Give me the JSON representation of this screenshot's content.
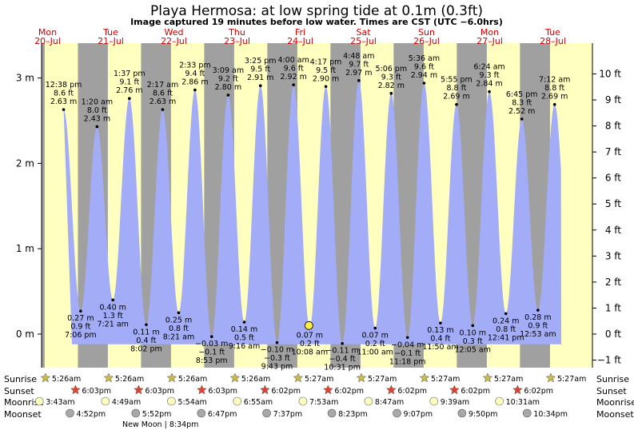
{
  "header": {
    "title": "Playa Hermosa: at low  spring tide at 0.1m (0.3ft)",
    "subtitle": "Image captured 19 minutes before low water. Times are CST (UTC −6.0hrs)"
  },
  "colors": {
    "water": "#a3acf6",
    "day": "#ffffc0",
    "night": "#a0a0a0",
    "sunrise_star": "#ccbb44",
    "sunset_star": "#dd4433",
    "moonrise_dot": "#ffffc0",
    "moonset_dot": "#a8a8a8",
    "day_label": "#cc0000",
    "current_marker": "#ffee44"
  },
  "chart_data": {
    "type": "area",
    "title": "Playa Hermosa: at low  spring tide at 0.1m (0.3ft)",
    "y_left_unit": "m",
    "y_right_unit": "ft",
    "y_left_ticks": [
      "0 m",
      "1 m",
      "2 m",
      "3 m"
    ],
    "y_right_ticks": [
      "−1 ft",
      "0 ft",
      "1 ft",
      "2 ft",
      "3 ft",
      "4 ft",
      "5 ft",
      "6 ft",
      "7 ft",
      "8 ft",
      "9 ft",
      "10 ft"
    ],
    "ylim_m": [
      -0.35,
      3.2
    ],
    "days": [
      {
        "name": "Mon",
        "date": "20–Jul"
      },
      {
        "name": "Tue",
        "date": "21–Jul"
      },
      {
        "name": "Wed",
        "date": "22–Jul"
      },
      {
        "name": "Thu",
        "date": "23–Jul"
      },
      {
        "name": "Fri",
        "date": "24–Jul"
      },
      {
        "name": "Sat",
        "date": "25–Jul"
      },
      {
        "name": "Sun",
        "date": "26–Jul"
      },
      {
        "name": "Mon",
        "date": "27–Jul"
      },
      {
        "name": "Tue",
        "date": "28–Jul"
      }
    ],
    "tides": [
      {
        "type": "high",
        "time": "12:38 pm",
        "ft": "8.6 ft",
        "m": "2.63 m",
        "value": 2.63,
        "day": 0,
        "hour": 12.63
      },
      {
        "type": "low",
        "time": "7:06 pm",
        "ft": "0.9 ft",
        "m": "0.27 m",
        "value": 0.27,
        "day": 0,
        "hour": 19.1
      },
      {
        "type": "high",
        "time": "1:20 am",
        "ft": "8.0 ft",
        "m": "2.43 m",
        "value": 2.43,
        "day": 1,
        "hour": 1.33
      },
      {
        "type": "low",
        "time": "7:21 am",
        "ft": "1.3 ft",
        "m": "0.40 m",
        "value": 0.4,
        "day": 1,
        "hour": 7.35
      },
      {
        "type": "high",
        "time": "1:37 pm",
        "ft": "9.1 ft",
        "m": "2.76 m",
        "value": 2.76,
        "day": 1,
        "hour": 13.62
      },
      {
        "type": "low",
        "time": "8:02 pm",
        "ft": "0.4 ft",
        "m": "0.11 m",
        "value": 0.11,
        "day": 1,
        "hour": 20.03
      },
      {
        "type": "high",
        "time": "2:17 am",
        "ft": "8.6 ft",
        "m": "2.63 m",
        "value": 2.63,
        "day": 2,
        "hour": 2.28
      },
      {
        "type": "low",
        "time": "8:21 am",
        "ft": "0.8 ft",
        "m": "0.25 m",
        "value": 0.25,
        "day": 2,
        "hour": 8.35
      },
      {
        "type": "high",
        "time": "2:33 pm",
        "ft": "9.4 ft",
        "m": "2.86 m",
        "value": 2.86,
        "day": 2,
        "hour": 14.55
      },
      {
        "type": "low",
        "time": "8:53 pm",
        "ft": "−0.1 ft",
        "m": "−0.03 m",
        "value": -0.03,
        "day": 2,
        "hour": 20.88
      },
      {
        "type": "high",
        "time": "3:09 am",
        "ft": "9.2 ft",
        "m": "2.80 m",
        "value": 2.8,
        "day": 3,
        "hour": 3.15
      },
      {
        "type": "low",
        "time": "9:16 am",
        "ft": "0.5 ft",
        "m": "0.14 m",
        "value": 0.14,
        "day": 3,
        "hour": 9.27
      },
      {
        "type": "high",
        "time": "3:25 pm",
        "ft": "9.5 ft",
        "m": "2.91 m",
        "value": 2.91,
        "day": 3,
        "hour": 15.42
      },
      {
        "type": "low",
        "time": "9:43 pm",
        "ft": "−0.3 ft",
        "m": "−0.10 m",
        "value": -0.1,
        "day": 3,
        "hour": 21.72
      },
      {
        "type": "high",
        "time": "4:00 am",
        "ft": "9.6 ft",
        "m": "2.92 m",
        "value": 2.92,
        "day": 4,
        "hour": 4.0
      },
      {
        "type": "low",
        "time": "10:08 am",
        "ft": "0.2 ft",
        "m": "0.07 m",
        "value": 0.07,
        "day": 4,
        "hour": 10.13
      },
      {
        "type": "high",
        "time": "4:17 pm",
        "ft": "9.5 ft",
        "m": "2.90 m",
        "value": 2.9,
        "day": 4,
        "hour": 16.28
      },
      {
        "type": "low",
        "time": "10:31 pm",
        "ft": "−0.4 ft",
        "m": "−0.11 m",
        "value": -0.11,
        "day": 4,
        "hour": 22.52
      },
      {
        "type": "high",
        "time": "4:48 am",
        "ft": "9.7 ft",
        "m": "2.97 m",
        "value": 2.97,
        "day": 5,
        "hour": 4.8
      },
      {
        "type": "low",
        "time": "11:00 am",
        "ft": "0.2 ft",
        "m": "0.07 m",
        "value": 0.07,
        "day": 5,
        "hour": 11.0
      },
      {
        "type": "high",
        "time": "5:06 pm",
        "ft": "9.3 ft",
        "m": "2.82 m",
        "value": 2.82,
        "day": 5,
        "hour": 17.1
      },
      {
        "type": "low",
        "time": "11:18 pm",
        "ft": "−0.1 ft",
        "m": "−0.04 m",
        "value": -0.04,
        "day": 5,
        "hour": 23.3
      },
      {
        "type": "high",
        "time": "5:36 am",
        "ft": "9.6 ft",
        "m": "2.94 m",
        "value": 2.94,
        "day": 6,
        "hour": 5.6
      },
      {
        "type": "low",
        "time": "11:50 am",
        "ft": "0.4 ft",
        "m": "0.13 m",
        "value": 0.13,
        "day": 6,
        "hour": 11.83
      },
      {
        "type": "high",
        "time": "5:55 pm",
        "ft": "8.8 ft",
        "m": "2.69 m",
        "value": 2.69,
        "day": 6,
        "hour": 17.92
      },
      {
        "type": "low",
        "time": "12:05 am",
        "ft": "0.3 ft",
        "m": "0.10 m",
        "value": 0.1,
        "day": 7,
        "hour": 0.08
      },
      {
        "type": "high",
        "time": "6:24 am",
        "ft": "9.3 ft",
        "m": "2.84 m",
        "value": 2.84,
        "day": 7,
        "hour": 6.4
      },
      {
        "type": "low",
        "time": "12:41 pm",
        "ft": "0.8 ft",
        "m": "0.24 m",
        "value": 0.24,
        "day": 7,
        "hour": 12.68
      },
      {
        "type": "high",
        "time": "6:45 pm",
        "ft": "8.3 ft",
        "m": "2.52 m",
        "value": 2.52,
        "day": 7,
        "hour": 18.75
      },
      {
        "type": "low",
        "time": "12:53 am",
        "ft": "0.9 ft",
        "m": "0.28 m",
        "value": 0.28,
        "day": 8,
        "hour": 0.88
      },
      {
        "type": "high",
        "time": "7:12 am",
        "ft": "8.8 ft",
        "m": "2.69 m",
        "value": 2.69,
        "day": 8,
        "hour": 7.2
      }
    ],
    "current": {
      "day": 4,
      "hour": 9.82,
      "value": 0.1
    }
  },
  "bottom": {
    "labels": {
      "sunrise": "Sunrise",
      "sunset": "Sunset",
      "moonrise": "Moonrise",
      "moonset": "Moonset"
    },
    "sunrise": [
      {
        "day": 0,
        "time": "5:26am"
      },
      {
        "day": 1,
        "time": "5:26am"
      },
      {
        "day": 2,
        "time": "5:26am"
      },
      {
        "day": 3,
        "time": "5:26am"
      },
      {
        "day": 4,
        "time": "5:27am"
      },
      {
        "day": 5,
        "time": "5:27am"
      },
      {
        "day": 6,
        "time": "5:27am"
      },
      {
        "day": 7,
        "time": "5:27am"
      },
      {
        "day": 8,
        "time": "5:27am"
      }
    ],
    "sunset": [
      {
        "day": 0,
        "time": "6:03pm"
      },
      {
        "day": 1,
        "time": "6:03pm"
      },
      {
        "day": 2,
        "time": "6:03pm"
      },
      {
        "day": 3,
        "time": "6:02pm"
      },
      {
        "day": 4,
        "time": "6:02pm"
      },
      {
        "day": 5,
        "time": "6:02pm"
      },
      {
        "day": 6,
        "time": "6:02pm"
      },
      {
        "day": 7,
        "time": "6:02pm"
      }
    ],
    "moonrise": [
      {
        "day": 0,
        "time": "3:43am"
      },
      {
        "day": 1,
        "time": "4:49am"
      },
      {
        "day": 2,
        "time": "5:54am"
      },
      {
        "day": 3,
        "time": "6:55am"
      },
      {
        "day": 4,
        "time": "7:53am"
      },
      {
        "day": 5,
        "time": "8:47am"
      },
      {
        "day": 6,
        "time": "9:39am"
      },
      {
        "day": 7,
        "time": "10:31am"
      }
    ],
    "moonset": [
      {
        "day": 0,
        "time": "4:52pm"
      },
      {
        "day": 1,
        "time": "5:52pm"
      },
      {
        "day": 2,
        "time": "6:47pm"
      },
      {
        "day": 3,
        "time": "7:37pm"
      },
      {
        "day": 4,
        "time": "8:23pm"
      },
      {
        "day": 5,
        "time": "9:07pm"
      },
      {
        "day": 6,
        "time": "9:50pm"
      },
      {
        "day": 7,
        "time": "10:34pm"
      }
    ],
    "new_moon": "New Moon | 8:34pm"
  }
}
